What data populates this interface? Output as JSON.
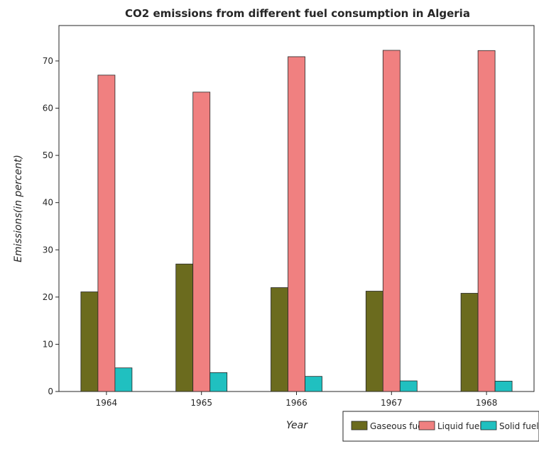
{
  "chart_data": {
    "type": "bar",
    "title": "CO2 emissions from different fuel consumption in Algeria",
    "xlabel": "Year",
    "ylabel": "Emissions(in percent)",
    "categories": [
      "1964",
      "1965",
      "1966",
      "1967",
      "1968"
    ],
    "series": [
      {
        "name": "Gaseous fuel",
        "color": "#6b6b1e",
        "values": [
          21.1,
          27.0,
          22.0,
          21.25,
          20.8
        ]
      },
      {
        "name": "Liquid fuel",
        "color": "#f08080",
        "values": [
          67.0,
          63.4,
          70.9,
          72.25,
          72.2
        ]
      },
      {
        "name": "Solid fuel",
        "color": "#20c0c0",
        "values": [
          5.0,
          4.0,
          3.2,
          2.25,
          2.2
        ]
      }
    ],
    "ylim": [
      0,
      77.5
    ],
    "yticks": [
      0,
      10,
      20,
      30,
      40,
      50,
      60,
      70
    ],
    "grid": false,
    "legend": "bottom-right"
  }
}
